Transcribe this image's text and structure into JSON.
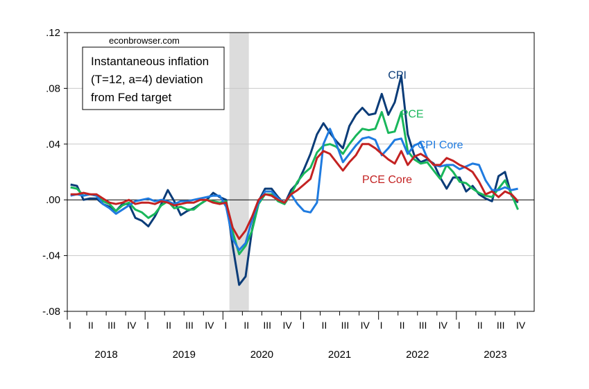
{
  "chart_data": {
    "type": "line",
    "watermark": "econbrowser.com",
    "annotation": [
      "Instantaneous inflation",
      "(T=12, a=4) deviation",
      "from Fed target"
    ],
    "xlabel": "",
    "ylabel": "",
    "ylim": [
      -0.08,
      0.12
    ],
    "y_ticks": [
      ".12",
      ".08",
      ".04",
      ".00",
      "-.04",
      "-.08"
    ],
    "y_tick_values": [
      0.12,
      0.08,
      0.04,
      0.0,
      -0.04,
      -0.08
    ],
    "x_start": "2018-01",
    "x_end": "2023-12",
    "quarter_labels": [
      "I",
      "II",
      "III",
      "IV"
    ],
    "years": [
      "2018",
      "2019",
      "2020",
      "2021",
      "2022",
      "2023"
    ],
    "recession_shading": [
      "2020-02",
      "2020-04"
    ],
    "zero_line": true,
    "grid": "horizontal",
    "series": [
      {
        "name": "CPI",
        "color": "#0b3c78",
        "values": [
          0.011,
          0.01,
          0.0,
          0.001,
          0.001,
          -0.003,
          -0.005,
          -0.008,
          -0.003,
          -0.003,
          -0.013,
          -0.015,
          -0.019,
          -0.012,
          -0.003,
          0.007,
          -0.001,
          -0.011,
          -0.008,
          -0.006,
          -0.003,
          0.0,
          0.005,
          0.002,
          0.0,
          -0.033,
          -0.061,
          -0.055,
          -0.021,
          -0.001,
          0.008,
          0.008,
          0.002,
          -0.003,
          0.007,
          0.012,
          0.022,
          0.033,
          0.047,
          0.055,
          0.048,
          0.042,
          0.037,
          0.053,
          0.061,
          0.066,
          0.061,
          0.062,
          0.076,
          0.061,
          0.07,
          0.089,
          0.047,
          0.032,
          0.027,
          0.029,
          0.026,
          0.016,
          0.008,
          0.016,
          0.016,
          0.006,
          0.01,
          0.004,
          0.001,
          -0.001,
          0.017,
          0.02,
          0.003,
          -0.002
        ]
      },
      {
        "name": "PCE",
        "color": "#19b75b",
        "values": [
          0.009,
          0.008,
          0.003,
          0.004,
          0.003,
          -0.001,
          -0.003,
          -0.008,
          -0.004,
          -0.002,
          -0.007,
          -0.009,
          -0.013,
          -0.01,
          -0.004,
          -0.001,
          -0.006,
          -0.005,
          -0.007,
          -0.007,
          -0.003,
          0.0,
          -0.001,
          -0.002,
          -0.001,
          -0.023,
          -0.039,
          -0.033,
          -0.022,
          -0.003,
          0.004,
          0.004,
          -0.001,
          -0.003,
          0.004,
          0.013,
          0.019,
          0.023,
          0.034,
          0.039,
          0.04,
          0.038,
          0.033,
          0.04,
          0.046,
          0.051,
          0.05,
          0.051,
          0.063,
          0.048,
          0.049,
          0.063,
          0.035,
          0.029,
          0.026,
          0.027,
          0.021,
          0.015,
          0.025,
          0.02,
          0.013,
          0.012,
          0.008,
          0.005,
          0.003,
          0.002,
          0.008,
          0.014,
          0.004,
          -0.007
        ]
      },
      {
        "name": "CPI Core",
        "color": "#1f7be0",
        "values": [
          0.003,
          0.004,
          0.003,
          0.004,
          0.003,
          -0.003,
          -0.006,
          -0.01,
          -0.007,
          -0.004,
          -0.001,
          0.0,
          0.001,
          -0.001,
          0.0,
          -0.001,
          -0.003,
          -0.001,
          -0.001,
          0.0,
          0.001,
          0.002,
          0.003,
          0.003,
          -0.005,
          -0.028,
          -0.036,
          -0.031,
          -0.014,
          -0.002,
          0.006,
          0.006,
          0.001,
          -0.002,
          0.004,
          -0.003,
          -0.008,
          -0.009,
          -0.002,
          0.04,
          0.051,
          0.04,
          0.027,
          0.033,
          0.039,
          0.044,
          0.045,
          0.043,
          0.032,
          0.037,
          0.043,
          0.044,
          0.033,
          0.039,
          0.041,
          0.03,
          0.025,
          0.024,
          0.025,
          0.025,
          0.022,
          0.024,
          0.026,
          0.025,
          0.014,
          0.007,
          0.007,
          0.009,
          0.007,
          0.008
        ]
      },
      {
        "name": "PCE Core",
        "color": "#c32222",
        "values": [
          0.004,
          0.004,
          0.005,
          0.004,
          0.004,
          0.001,
          -0.002,
          -0.003,
          -0.002,
          0.0,
          -0.003,
          -0.002,
          -0.002,
          -0.003,
          -0.001,
          -0.002,
          -0.004,
          -0.003,
          -0.002,
          -0.002,
          0.0,
          0.0,
          -0.002,
          -0.003,
          -0.002,
          -0.02,
          -0.028,
          -0.022,
          -0.012,
          0.0,
          0.004,
          0.003,
          0.0,
          -0.002,
          0.004,
          0.007,
          0.011,
          0.015,
          0.03,
          0.035,
          0.033,
          0.027,
          0.021,
          0.027,
          0.032,
          0.04,
          0.04,
          0.037,
          0.033,
          0.029,
          0.026,
          0.035,
          0.025,
          0.031,
          0.033,
          0.03,
          0.025,
          0.025,
          0.03,
          0.028,
          0.025,
          0.023,
          0.02,
          0.013,
          0.004,
          0.006,
          0.002,
          0.006,
          0.004,
          -0.001
        ]
      }
    ],
    "series_label_positions": {
      "CPI": [
        2022.05,
        0.089
      ],
      "PCE": [
        2022.25,
        0.06
      ],
      "CPI Core": [
        2022.5,
        0.04
      ],
      "PCE Core": [
        2021.7,
        0.012
      ]
    }
  }
}
